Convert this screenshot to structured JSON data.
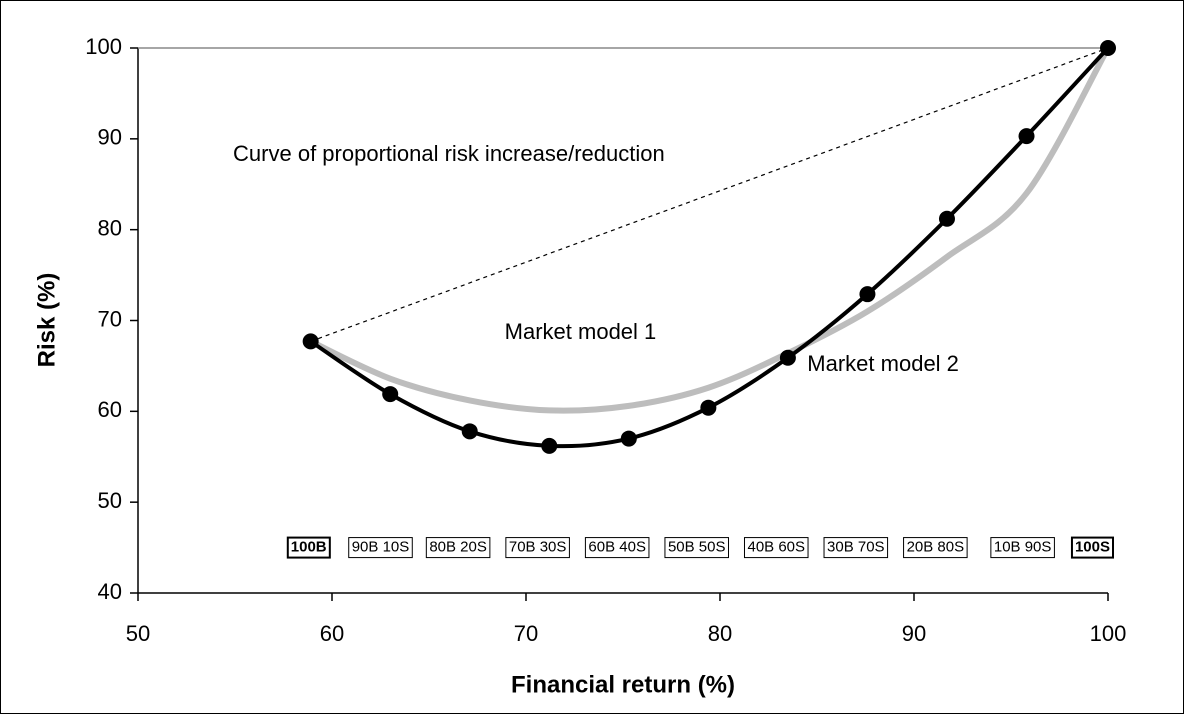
{
  "chart_data": {
    "type": "line",
    "xlabel": "Financial return (%)",
    "ylabel": "Risk (%)",
    "xlim": [
      50,
      100
    ],
    "xticks": [
      50,
      60,
      70,
      80,
      90,
      100
    ],
    "ylim": [
      40,
      100
    ],
    "yticks": [
      40,
      50,
      60,
      70,
      80,
      90,
      100
    ],
    "series": [
      {
        "color": "#bdbdbd",
        "style": "dashed",
        "x": [
          58.9,
          100
        ],
        "values": [
          67.7,
          100
        ]
      },
      {
        "color": "#bdbdbd",
        "style": "smooth",
        "x": [
          58.9,
          63.0,
          67.1,
          71.2,
          75.3,
          79.4,
          83.5,
          87.6,
          91.7,
          95.8,
          100
        ],
        "values": [
          67.7,
          63.6,
          61.2,
          60.1,
          60.6,
          62.6,
          66.4,
          71.0,
          77.0,
          84.0,
          100
        ]
      },
      {
        "color": "#000000",
        "style": "smooth",
        "markers": true,
        "x": [
          58.9,
          63.0,
          67.1,
          71.2,
          75.3,
          79.4,
          83.5,
          87.6,
          91.7,
          95.8,
          100
        ],
        "values": [
          67.7,
          61.9,
          57.8,
          56.2,
          57.0,
          60.4,
          65.9,
          72.9,
          81.2,
          90.3,
          100
        ]
      }
    ],
    "annotations": [
      {
        "text": "Curve of proportional risk increase/reduction",
        "x": 54.9,
        "y": 88.2
      },
      {
        "text": "Market model 1",
        "x": 68.9,
        "y": 68.6
      },
      {
        "text": "Market model 2",
        "x": 84.5,
        "y": 65.1
      }
    ],
    "mix_labels": {
      "y": 45,
      "items": [
        {
          "text": "100B",
          "x": 58.8,
          "bold": true
        },
        {
          "text": "90B 10S",
          "x": 62.5
        },
        {
          "text": "80B 20S",
          "x": 66.5
        },
        {
          "text": "70B 30S",
          "x": 70.6
        },
        {
          "text": "60B 40S",
          "x": 74.7
        },
        {
          "text": "50B 50S",
          "x": 78.8
        },
        {
          "text": "40B 60S",
          "x": 82.9
        },
        {
          "text": "30B 70S",
          "x": 87.0
        },
        {
          "text": "20B 80S",
          "x": 91.1
        },
        {
          "text": "10B 90S",
          "x": 95.6
        },
        {
          "text": "100S",
          "x": 99.2,
          "bold": true
        }
      ]
    }
  }
}
